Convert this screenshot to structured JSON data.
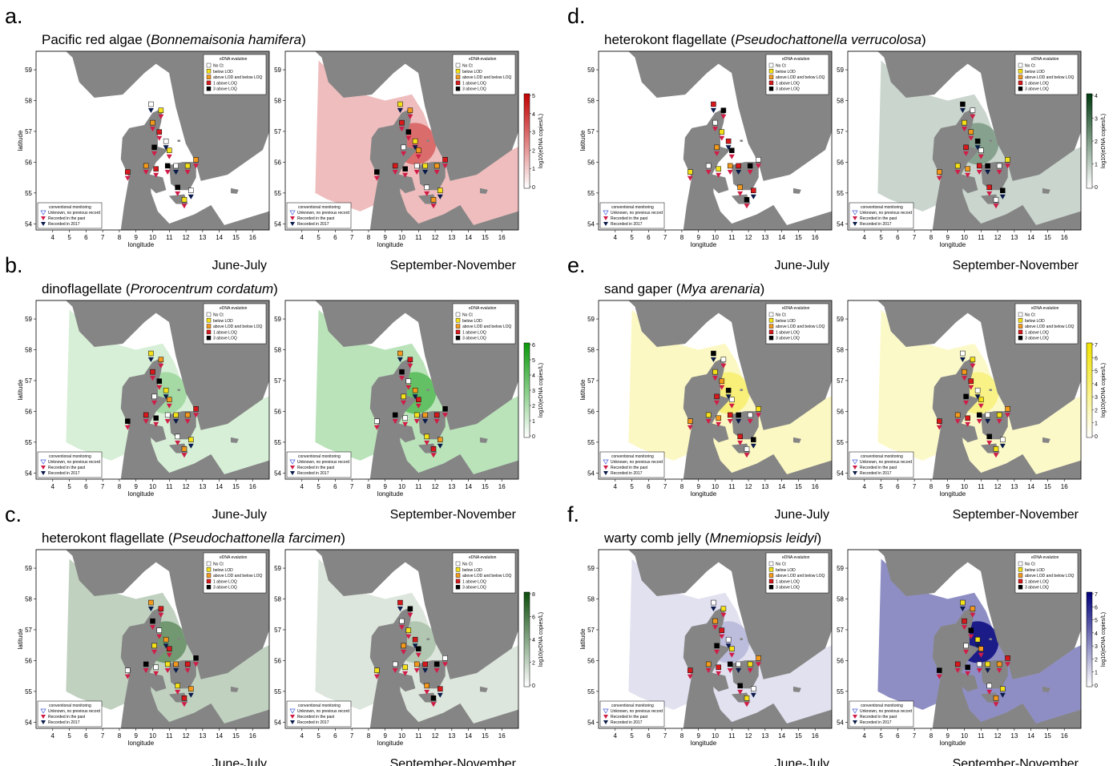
{
  "eval_legend": {
    "title": "eDNA evalution",
    "items": [
      {
        "label": "No Ct",
        "color": "#ffffff"
      },
      {
        "label": "below LOD",
        "color": "#f5e11a"
      },
      {
        "label": "above LOD and below LOQ",
        "color": "#f39a1e"
      },
      {
        "label": "1 above LOQ",
        "color": "#d7191c"
      },
      {
        "label": "3 above LOQ",
        "color": "#000000"
      }
    ]
  },
  "conv_legend": {
    "title": "conventional monitoring",
    "items": [
      {
        "label": "Unknown, no previous record",
        "marker": "open",
        "color": "#3d5bd9"
      },
      {
        "label": "Recorded in the past",
        "marker": "filled",
        "color": "#d01c47"
      },
      {
        "label": "Recorded in 2017",
        "marker": "filled",
        "color": "#0a1a4a"
      }
    ]
  },
  "axes": {
    "xlabel": "longitude",
    "ylabel": "latitude",
    "xticks": [
      "4",
      "5",
      "6",
      "7",
      "8",
      "9",
      "10",
      "11",
      "12",
      "13",
      "14",
      "15",
      "16"
    ],
    "yticks": [
      "54",
      "55",
      "56",
      "57",
      "58",
      "59"
    ],
    "xlim": [
      3.0,
      17.0
    ],
    "ylim": [
      53.8,
      59.6
    ]
  },
  "colorbar_label": "log10(eDNA copies/L)",
  "seasons": [
    "June-July",
    "September-November"
  ],
  "chart_data": [
    {
      "type": "heatmap",
      "panel": "a.",
      "title_prefix": "Pacific red algae (",
      "species": "Bonnemaisonia hamifera",
      "title_suffix": ")",
      "colorbar_ticks": [
        "0",
        "1",
        "2",
        "3",
        "4",
        "5"
      ],
      "colorbar_colors": [
        "#ffffff",
        "#c00000"
      ],
      "maps": [
        {
          "season": "June-July",
          "intensity": 0.0
        },
        {
          "season": "September-November",
          "intensity": 0.55
        }
      ]
    },
    {
      "type": "heatmap",
      "panel": "b.",
      "title_prefix": "dinoflagellate (",
      "species": "Prorocentrum cordatum",
      "title_suffix": ")",
      "colorbar_ticks": [
        "0",
        "1",
        "2",
        "3",
        "4",
        "5",
        "6"
      ],
      "colorbar_colors": [
        "#ffffff",
        "#0a9a0a"
      ],
      "maps": [
        {
          "season": "June-July",
          "intensity": 0.35
        },
        {
          "season": "September-November",
          "intensity": 0.6
        }
      ]
    },
    {
      "type": "heatmap",
      "panel": "c.",
      "title_prefix": "heterokont flagellate (",
      "species": "Pseudochattonella farcimen",
      "title_suffix": ")",
      "colorbar_ticks": [
        "0",
        "2",
        "4",
        "6",
        "8"
      ],
      "colorbar_colors": [
        "#ffffff",
        "#0b4d0b"
      ],
      "maps": [
        {
          "season": "June-July",
          "intensity": 0.55
        },
        {
          "season": "September-November",
          "intensity": 0.3
        }
      ]
    },
    {
      "type": "heatmap",
      "panel": "d.",
      "title_prefix": "heterokont flagellate (",
      "species": "Pseudochattonella verrucolosa",
      "title_suffix": ")",
      "colorbar_ticks": [
        "0",
        "1",
        "2",
        "3",
        "4"
      ],
      "colorbar_colors": [
        "#ffffff",
        "#003a10"
      ],
      "maps": [
        {
          "season": "June-July",
          "intensity": 0.0
        },
        {
          "season": "September-November",
          "intensity": 0.45
        }
      ]
    },
    {
      "type": "heatmap",
      "panel": "e.",
      "title_prefix": "sand gaper (",
      "species": "Mya arenaria",
      "title_suffix": ")",
      "colorbar_ticks": [
        "0",
        "1",
        "2",
        "3",
        "4",
        "5",
        "6",
        "7"
      ],
      "colorbar_colors": [
        "#ffffff",
        "#f1e300"
      ],
      "maps": [
        {
          "season": "June-July",
          "intensity": 0.5
        },
        {
          "season": "September-November",
          "intensity": 0.45
        }
      ]
    },
    {
      "type": "heatmap",
      "panel": "f.",
      "title_prefix": "warty comb jelly (",
      "species": "Mnemiopsis leidyi",
      "title_suffix": ")",
      "colorbar_ticks": [
        "0",
        "1",
        "2",
        "3",
        "4",
        "5",
        "6",
        "7"
      ],
      "colorbar_colors": [
        "#ffffff",
        "#00007a"
      ],
      "maps": [
        {
          "season": "June-July",
          "intensity": 0.25
        },
        {
          "season": "September-November",
          "intensity": 0.95
        }
      ]
    }
  ]
}
